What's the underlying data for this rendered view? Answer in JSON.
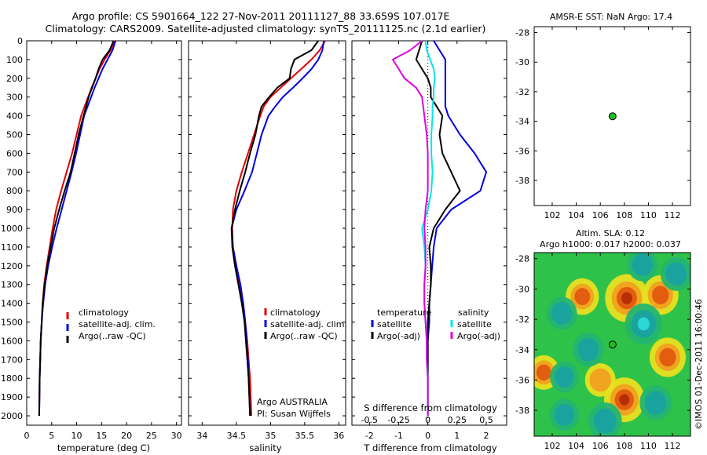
{
  "header": {
    "line1": "Argo profile: CS 5901664_122 27-Nov-2011 20111127_88 33.659S 107.017E",
    "line2": "Climatology: CARS2009. Satellite-adjusted climatology: synTS_20111125.nc (2.1d earlier)"
  },
  "colors": {
    "climatology": "#e00000",
    "satellite": "#0000e0",
    "argo": "#000000",
    "cyan": "#00e8e8",
    "magenta": "#e000e0",
    "marker": "#22bb22"
  },
  "chart_data": [
    {
      "type": "line",
      "panel": "temperature",
      "xlabel": "temperature (deg C)",
      "ylabel": "",
      "xlim": [
        0,
        31
      ],
      "ylim": [
        2050,
        0
      ],
      "xticks": [
        "0",
        "5",
        "10",
        "15",
        "20",
        "25",
        "30"
      ],
      "yticks": [
        "0",
        "100",
        "200",
        "300",
        "400",
        "500",
        "600",
        "700",
        "800",
        "900",
        "1000",
        "1100",
        "1200",
        "1300",
        "1400",
        "1500",
        "1600",
        "1700",
        "1800",
        "1900",
        "2000"
      ],
      "legend": [
        "climatology",
        "satellite-adj. clim.",
        "Argo(..raw -QC)"
      ],
      "series": [
        {
          "name": "climatology",
          "color": "#e00000",
          "x": [
            17.6,
            16.8,
            15.6,
            14.6,
            13.8,
            13.0,
            12.3,
            11.6,
            10.9,
            10.0,
            9.1,
            8.0,
            6.9,
            5.9,
            5.2,
            4.6,
            4.0,
            3.5,
            3.2,
            3.0,
            2.8,
            2.7,
            2.6,
            2.5
          ],
          "y": [
            0,
            50,
            100,
            150,
            200,
            250,
            300,
            350,
            400,
            500,
            600,
            700,
            800,
            900,
            1000,
            1100,
            1200,
            1300,
            1400,
            1500,
            1600,
            1700,
            1800,
            2000
          ]
        },
        {
          "name": "satellite-adj. clim.",
          "color": "#0000e0",
          "x": [
            17.8,
            17.2,
            16.2,
            15.2,
            14.4,
            13.6,
            12.9,
            12.2,
            11.5,
            10.7,
            9.9,
            9.0,
            8.0,
            7.0,
            6.0,
            5.1,
            4.3,
            3.7,
            3.3,
            3.0,
            2.8,
            2.7,
            2.6,
            2.5
          ],
          "y": [
            0,
            50,
            100,
            150,
            200,
            250,
            300,
            350,
            400,
            500,
            600,
            700,
            800,
            900,
            1000,
            1100,
            1200,
            1300,
            1400,
            1500,
            1600,
            1700,
            1800,
            2000
          ]
        },
        {
          "name": "Argo(..raw -QC)",
          "color": "#000000",
          "x": [
            17.4,
            16.6,
            15.2,
            14.4,
            13.8,
            13.1,
            12.4,
            11.9,
            11.4,
            10.4,
            9.6,
            8.8,
            7.6,
            6.5,
            5.5,
            4.8,
            4.1,
            3.6,
            3.2,
            3.0,
            2.8,
            2.7,
            2.6,
            2.5
          ],
          "y": [
            0,
            50,
            100,
            150,
            200,
            250,
            300,
            350,
            400,
            500,
            600,
            700,
            800,
            900,
            1000,
            1100,
            1200,
            1300,
            1400,
            1500,
            1600,
            1700,
            1800,
            2000
          ]
        }
      ]
    },
    {
      "type": "line",
      "panel": "salinity",
      "xlabel": "salinity",
      "xlim": [
        33.8,
        36.1
      ],
      "ylim": [
        2050,
        0
      ],
      "xticks": [
        "34",
        "34.5",
        "35",
        "35.5",
        "36"
      ],
      "legend": [
        "climatology",
        "satellite-adj. clim.",
        "Argo(..raw -QC)"
      ],
      "annotations": [
        "Argo AUSTRALIA",
        "PI: Susan Wijffels"
      ],
      "series": [
        {
          "name": "climatology",
          "color": "#e00000",
          "x": [
            35.8,
            35.72,
            35.6,
            35.45,
            35.3,
            35.15,
            35.0,
            34.9,
            34.85,
            34.76,
            34.67,
            34.58,
            34.5,
            34.45,
            34.44,
            34.45,
            34.5,
            34.55,
            34.6,
            34.63,
            34.66,
            34.68,
            34.7,
            34.72
          ],
          "y": [
            0,
            50,
            100,
            150,
            200,
            250,
            300,
            350,
            400,
            500,
            600,
            700,
            800,
            900,
            1000,
            1100,
            1200,
            1300,
            1400,
            1500,
            1600,
            1700,
            1800,
            2000
          ]
        },
        {
          "name": "satellite-adj. clim.",
          "color": "#0000e0",
          "x": [
            35.78,
            35.76,
            35.7,
            35.6,
            35.47,
            35.33,
            35.18,
            35.07,
            34.97,
            34.87,
            34.8,
            34.73,
            34.62,
            34.5,
            34.43,
            34.45,
            34.5,
            34.56,
            34.6,
            34.63,
            34.65,
            34.67,
            34.68,
            34.7
          ],
          "y": [
            0,
            50,
            100,
            150,
            200,
            250,
            300,
            350,
            400,
            500,
            600,
            700,
            800,
            900,
            1000,
            1100,
            1200,
            1300,
            1400,
            1500,
            1600,
            1700,
            1800,
            2000
          ]
        },
        {
          "name": "Argo(..raw -QC)",
          "color": "#000000",
          "x": [
            35.7,
            35.6,
            35.35,
            35.3,
            35.28,
            35.1,
            34.98,
            34.87,
            34.83,
            34.78,
            34.7,
            34.63,
            34.55,
            34.48,
            34.43,
            34.44,
            34.48,
            34.53,
            34.58,
            34.62,
            34.64,
            34.66,
            34.68,
            34.7
          ],
          "y": [
            0,
            50,
            100,
            150,
            200,
            250,
            300,
            350,
            400,
            500,
            600,
            700,
            800,
            900,
            1000,
            1100,
            1200,
            1300,
            1400,
            1500,
            1600,
            1700,
            1800,
            2000
          ]
        }
      ]
    },
    {
      "type": "line",
      "panel": "difference",
      "xlabel": "T difference from climatology",
      "xlabel_top": "S difference from climatology",
      "xlim": [
        -2.6,
        2.7
      ],
      "ylim": [
        2050,
        0
      ],
      "xticks": [
        "-2",
        "-1",
        "0",
        "1",
        "2"
      ],
      "xticks_s": [
        "-0.5",
        "-0.25",
        "0",
        "0.25",
        "0.5"
      ],
      "legend_titles": [
        "temperature",
        "salinity"
      ],
      "legend": [
        "satellite",
        "Argo(-adj)",
        "satellite",
        "Argo(-adj)"
      ],
      "series": [
        {
          "name": "T satellite",
          "color": "#0000e0",
          "x": [
            0.2,
            0.4,
            0.6,
            0.6,
            0.6,
            0.6,
            0.6,
            0.6,
            0.7,
            1.1,
            1.6,
            2.0,
            1.8,
            0.8,
            0.3,
            0.2,
            0.15,
            0.1,
            0.05,
            0.05,
            0.0,
            0.0,
            0.0,
            0.0
          ],
          "y": [
            0,
            50,
            100,
            150,
            200,
            250,
            300,
            350,
            400,
            500,
            600,
            700,
            800,
            900,
            1000,
            1100,
            1200,
            1300,
            1400,
            1500,
            1600,
            1700,
            1800,
            2000
          ]
        },
        {
          "name": "T Argo(-adj)",
          "color": "#000000",
          "x": [
            -0.2,
            -0.3,
            -0.4,
            -0.2,
            0.0,
            0.1,
            0.1,
            0.3,
            0.5,
            0.4,
            0.5,
            0.8,
            1.1,
            0.6,
            0.2,
            0.05,
            0.1,
            0.1,
            0.05,
            0.0,
            0.0,
            0.0,
            0.0,
            0.0
          ],
          "y": [
            0,
            50,
            100,
            150,
            200,
            250,
            300,
            350,
            400,
            500,
            600,
            700,
            800,
            900,
            1000,
            1100,
            1200,
            1300,
            1400,
            1500,
            1600,
            1700,
            1800,
            2000
          ]
        },
        {
          "name": "S satellite",
          "color": "#00e8e8",
          "x": [
            -0.02,
            -0.01,
            0.02,
            0.05,
            0.06,
            0.05,
            0.05,
            0.04,
            0.04,
            0.03,
            0.03,
            0.04,
            0.03,
            0.0,
            -0.05,
            -0.03,
            -0.02,
            -0.03,
            -0.03,
            -0.02,
            -0.01,
            -0.01,
            0.0,
            0.0
          ],
          "y": [
            0,
            50,
            100,
            150,
            200,
            250,
            300,
            350,
            400,
            500,
            600,
            700,
            800,
            900,
            1000,
            1100,
            1200,
            1300,
            1400,
            1500,
            1600,
            1700,
            1800,
            2000
          ]
        },
        {
          "name": "S Argo(-adj)",
          "color": "#e000e0",
          "x": [
            -0.05,
            -0.15,
            -0.3,
            -0.25,
            -0.2,
            -0.1,
            -0.05,
            -0.04,
            -0.03,
            -0.01,
            0.0,
            0.0,
            0.0,
            -0.02,
            -0.03,
            -0.02,
            -0.02,
            -0.03,
            -0.03,
            -0.02,
            -0.01,
            -0.01,
            0.0,
            0.0
          ],
          "y": [
            0,
            50,
            100,
            150,
            200,
            250,
            300,
            350,
            400,
            500,
            600,
            700,
            800,
            900,
            1000,
            1100,
            1200,
            1300,
            1400,
            1500,
            1600,
            1700,
            1800,
            2000
          ]
        }
      ]
    },
    {
      "type": "scatter",
      "panel": "sst-map",
      "title": "AMSR-E SST: NaN Argo: 17.4",
      "xlim": [
        100.5,
        113.5
      ],
      "ylim": [
        -39.7,
        -27.6
      ],
      "xticks": [
        "102",
        "104",
        "106",
        "108",
        "110",
        "112"
      ],
      "yticks": [
        "-28",
        "-30",
        "-32",
        "-34",
        "-36",
        "-38"
      ],
      "points": [
        {
          "x": 107.02,
          "y": -33.66
        }
      ]
    },
    {
      "type": "heatmap",
      "panel": "sla-map",
      "title_line1": "Altim. SLA: 0.12",
      "title_line2": "Argo h1000: 0.017 h2000: 0.037",
      "xlim": [
        100.5,
        113.5
      ],
      "ylim": [
        -39.7,
        -27.6
      ],
      "xticks": [
        "102",
        "104",
        "106",
        "108",
        "110",
        "112"
      ],
      "yticks": [
        "-28",
        "-30",
        "-32",
        "-34",
        "-36",
        "-38"
      ],
      "points": [
        {
          "x": 107.02,
          "y": -33.66
        }
      ],
      "blobs": [
        {
          "x": 108.2,
          "y": -30.6,
          "value": 1.0
        },
        {
          "x": 111.0,
          "y": -30.4,
          "value": 0.6
        },
        {
          "x": 108.0,
          "y": -37.3,
          "value": 0.85
        },
        {
          "x": 111.6,
          "y": -34.5,
          "value": 0.6
        },
        {
          "x": 104.5,
          "y": -30.5,
          "value": 0.45
        },
        {
          "x": 101.3,
          "y": -35.5,
          "value": 0.35
        },
        {
          "x": 106.0,
          "y": -36.0,
          "value": 0.3
        },
        {
          "x": 109.6,
          "y": -32.3,
          "value": -0.8
        },
        {
          "x": 105.0,
          "y": -34.0,
          "value": -0.45
        },
        {
          "x": 102.8,
          "y": -31.6,
          "value": -0.4
        },
        {
          "x": 112.3,
          "y": -29.0,
          "value": -0.45
        },
        {
          "x": 106.4,
          "y": -38.7,
          "value": -0.6
        },
        {
          "x": 110.6,
          "y": -37.5,
          "value": -0.5
        },
        {
          "x": 103.0,
          "y": -38.3,
          "value": -0.35
        },
        {
          "x": 109.5,
          "y": -28.4,
          "value": -0.4
        },
        {
          "x": 103.0,
          "y": -35.8,
          "value": -0.3
        }
      ]
    }
  ],
  "footer": {
    "credit": "©IMOS 01-Dec-2011 16:00:46"
  }
}
